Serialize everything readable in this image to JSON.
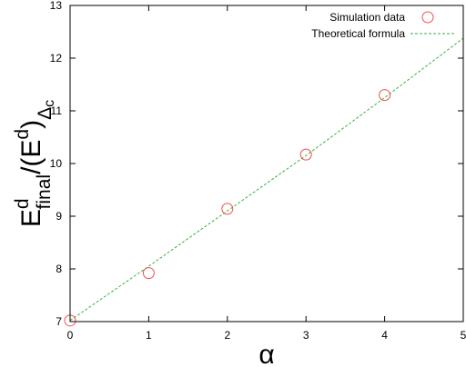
{
  "chart_data": {
    "type": "scatter",
    "xlabel": "α",
    "ylabel": {
      "main": "E",
      "sup1": "d",
      "sub1": "final",
      "mid": "/(E",
      "sup2": "d",
      "close": ")",
      "sub2": "Δ",
      "sub2b": "c"
    },
    "xlim": [
      0,
      5
    ],
    "ylim": [
      7,
      13
    ],
    "xticks": [
      0,
      1,
      2,
      3,
      4,
      5
    ],
    "yticks": [
      7,
      8,
      9,
      10,
      11,
      12,
      13
    ],
    "grid": false,
    "legend_position": "top-right",
    "series": [
      {
        "name": "Simulation data",
        "kind": "scatter",
        "marker": "open-circle",
        "color": "#f05050",
        "x": [
          0,
          1,
          2,
          3,
          4
        ],
        "y": [
          7.02,
          7.92,
          9.14,
          10.17,
          11.3
        ]
      },
      {
        "name": "Theoretical formula",
        "kind": "line",
        "dash": "dashed",
        "color": "#3cb043",
        "x": [
          0,
          1,
          2,
          3,
          4,
          5
        ],
        "y": [
          7.02,
          8.05,
          9.1,
          10.15,
          11.25,
          12.38
        ]
      }
    ]
  }
}
